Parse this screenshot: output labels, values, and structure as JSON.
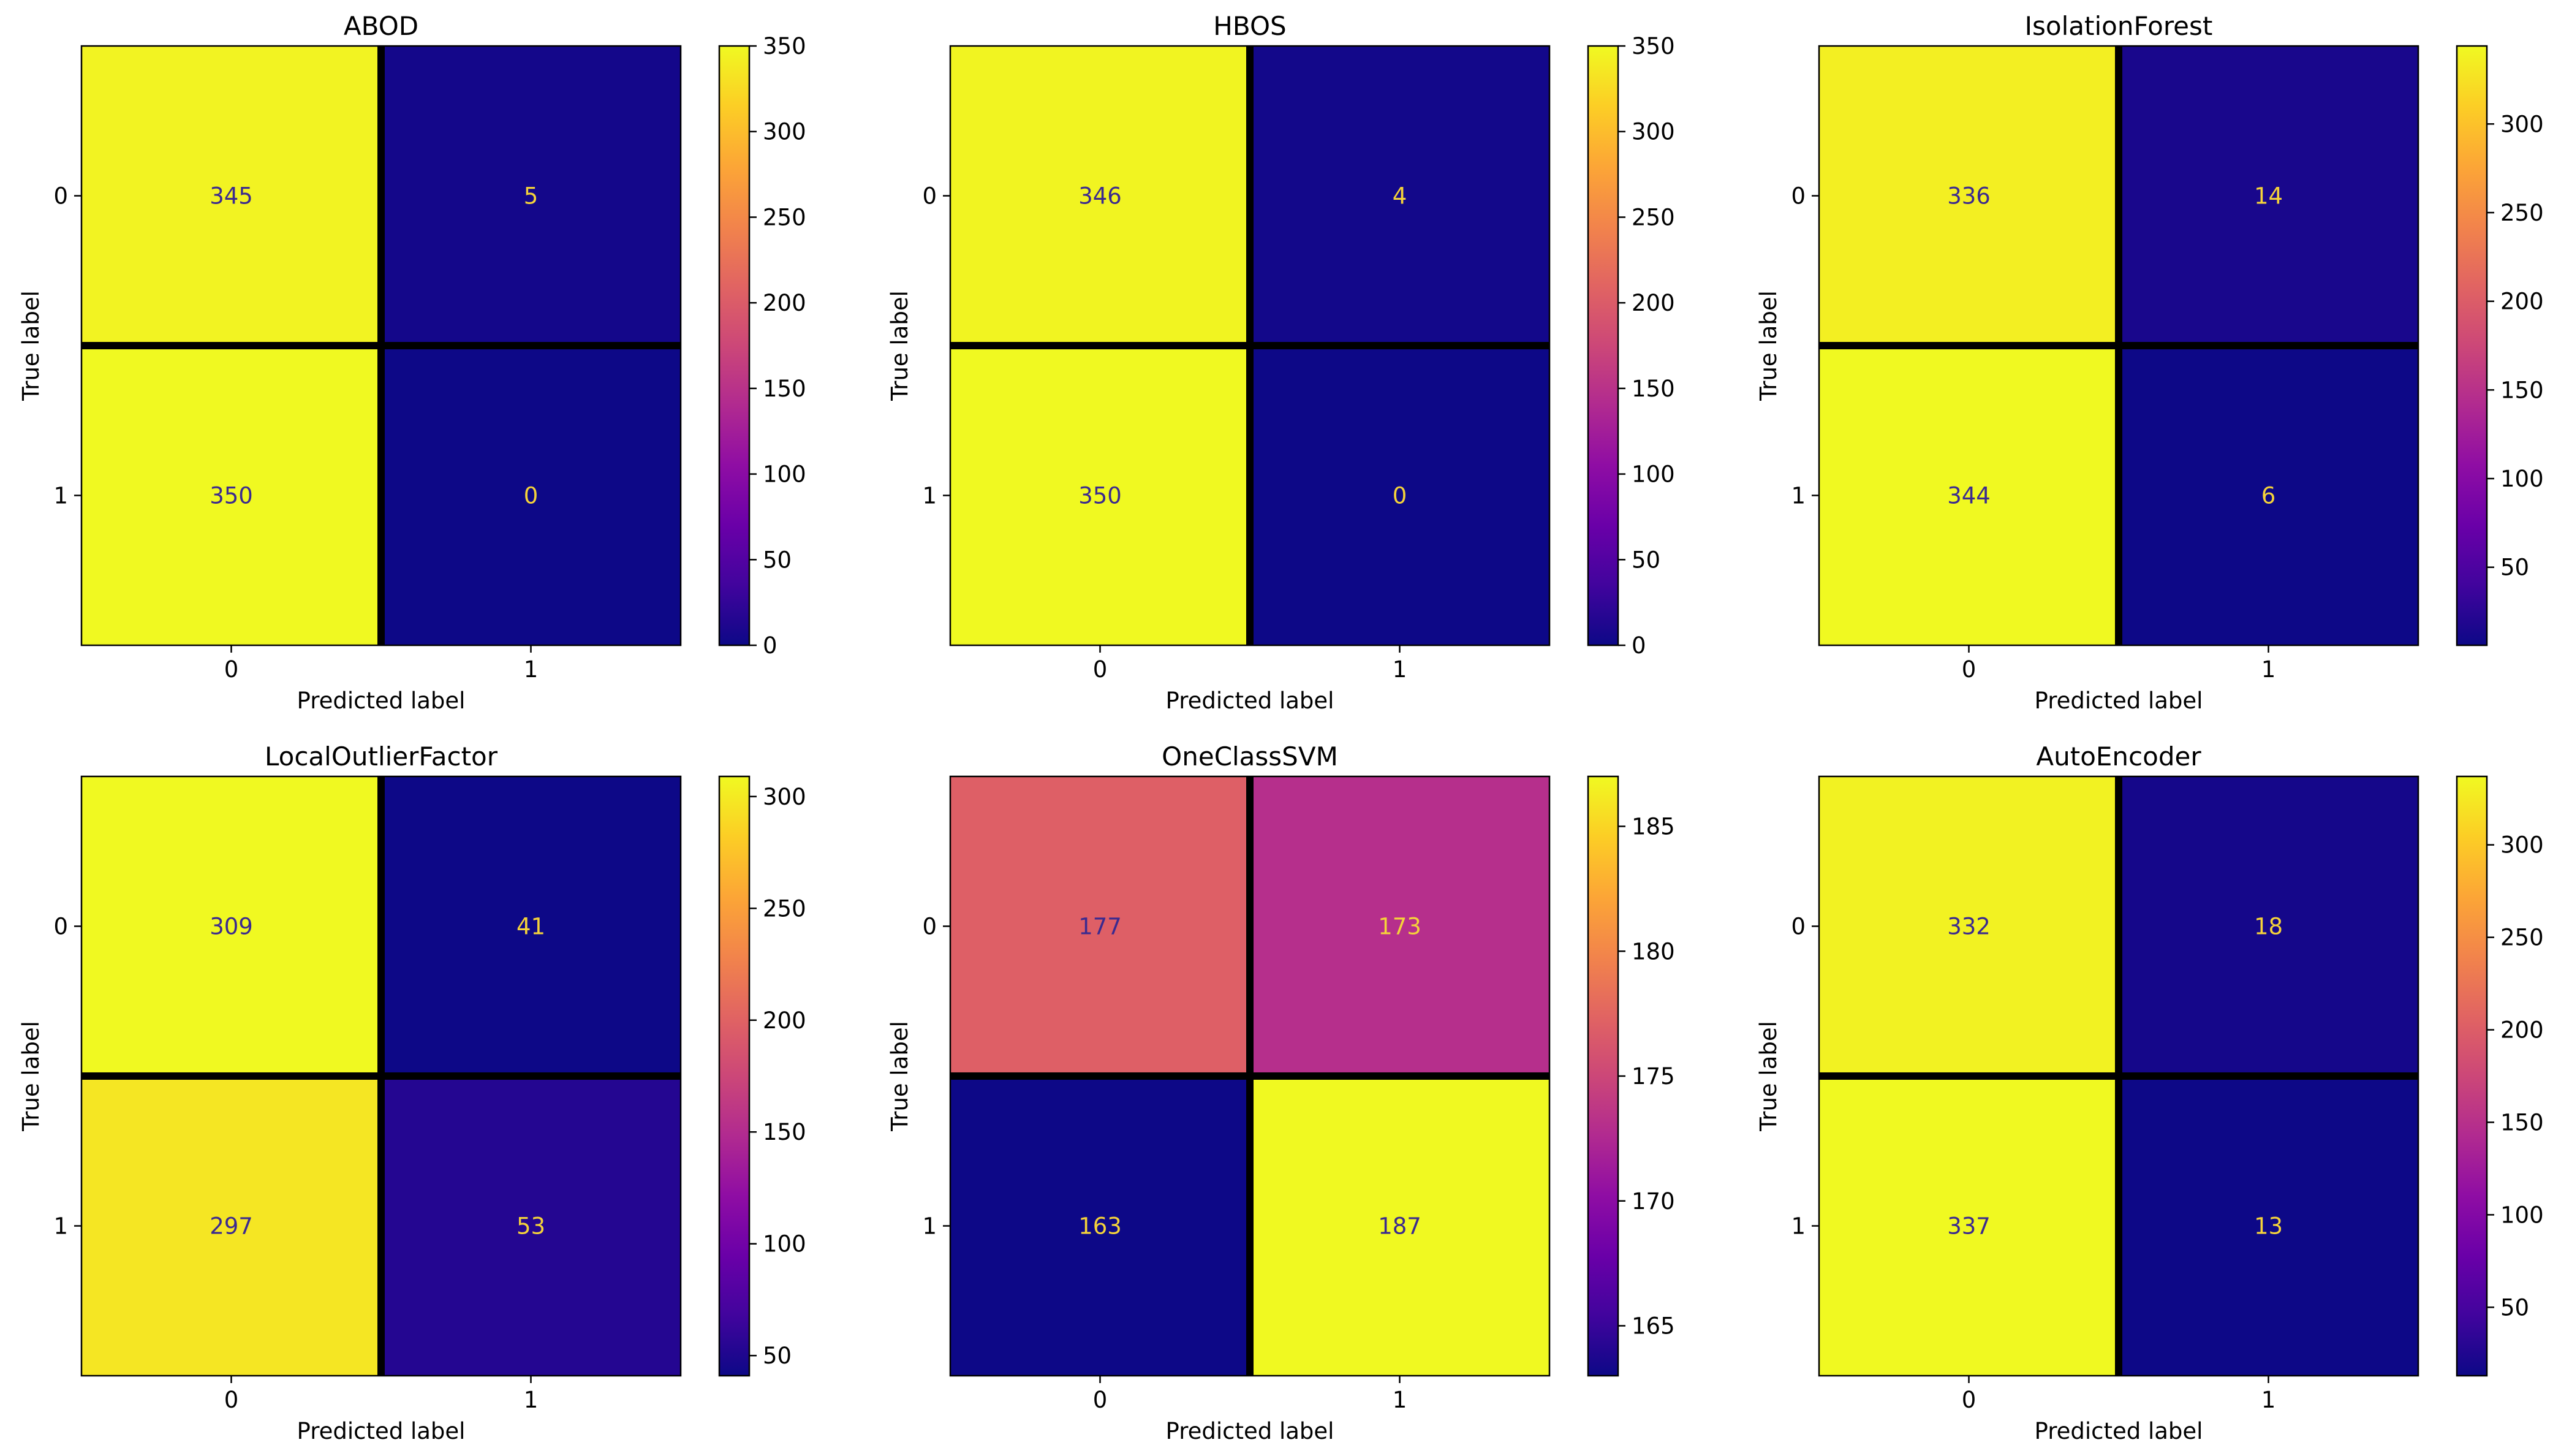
{
  "chart_data": [
    {
      "type": "heatmap",
      "title": "ABOD",
      "xlabel": "Predicted label",
      "ylabel": "True label",
      "x_tick_labels": [
        "0",
        "1"
      ],
      "y_tick_labels": [
        "0",
        "1"
      ],
      "matrix": [
        [
          345,
          5
        ],
        [
          350,
          0
        ]
      ],
      "colormap": "plasma",
      "colorbar": {
        "range": [
          0,
          350
        ],
        "ticks": [
          0,
          50,
          100,
          150,
          200,
          250,
          300,
          350
        ]
      }
    },
    {
      "type": "heatmap",
      "title": "HBOS",
      "xlabel": "Predicted label",
      "ylabel": "True label",
      "x_tick_labels": [
        "0",
        "1"
      ],
      "y_tick_labels": [
        "0",
        "1"
      ],
      "matrix": [
        [
          346,
          4
        ],
        [
          350,
          0
        ]
      ],
      "colormap": "plasma",
      "colorbar": {
        "range": [
          0,
          350
        ],
        "ticks": [
          0,
          50,
          100,
          150,
          200,
          250,
          300,
          350
        ]
      }
    },
    {
      "type": "heatmap",
      "title": "IsolationForest",
      "xlabel": "Predicted label",
      "ylabel": "True label",
      "x_tick_labels": [
        "0",
        "1"
      ],
      "y_tick_labels": [
        "0",
        "1"
      ],
      "matrix": [
        [
          336,
          14
        ],
        [
          344,
          6
        ]
      ],
      "colormap": "plasma",
      "colorbar": {
        "range": [
          6,
          344
        ],
        "ticks": [
          50,
          100,
          150,
          200,
          250,
          300
        ]
      }
    },
    {
      "type": "heatmap",
      "title": "LocalOutlierFactor",
      "xlabel": "Predicted label",
      "ylabel": "True label",
      "x_tick_labels": [
        "0",
        "1"
      ],
      "y_tick_labels": [
        "0",
        "1"
      ],
      "matrix": [
        [
          309,
          41
        ],
        [
          297,
          53
        ]
      ],
      "colormap": "plasma",
      "colorbar": {
        "range": [
          41,
          309
        ],
        "ticks": [
          50,
          100,
          150,
          200,
          250,
          300
        ]
      }
    },
    {
      "type": "heatmap",
      "title": "OneClassSVM",
      "xlabel": "Predicted label",
      "ylabel": "True label",
      "x_tick_labels": [
        "0",
        "1"
      ],
      "y_tick_labels": [
        "0",
        "1"
      ],
      "matrix": [
        [
          177,
          173
        ],
        [
          163,
          187
        ]
      ],
      "colormap": "plasma",
      "colorbar": {
        "range": [
          163,
          187
        ],
        "ticks": [
          165,
          170,
          175,
          180,
          185
        ]
      }
    },
    {
      "type": "heatmap",
      "title": "AutoEncoder",
      "xlabel": "Predicted label",
      "ylabel": "True label",
      "x_tick_labels": [
        "0",
        "1"
      ],
      "y_tick_labels": [
        "0",
        "1"
      ],
      "matrix": [
        [
          332,
          18
        ],
        [
          337,
          13
        ]
      ],
      "colormap": "plasma",
      "colorbar": {
        "range": [
          13,
          337
        ],
        "ticks": [
          50,
          100,
          150,
          200,
          250,
          300
        ]
      }
    }
  ]
}
